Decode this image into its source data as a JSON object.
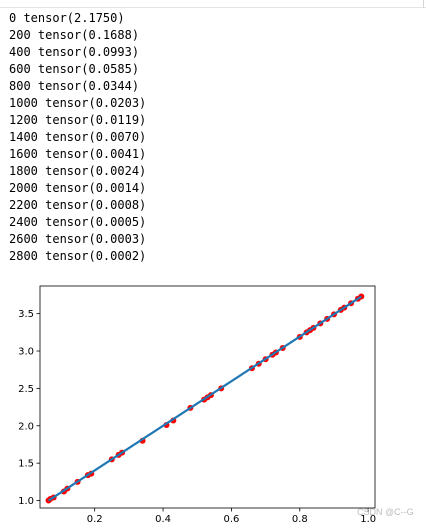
{
  "output": {
    "lines": [
      "0 tensor(2.1750)",
      "200 tensor(0.1688)",
      "400 tensor(0.0993)",
      "600 tensor(0.0585)",
      "800 tensor(0.0344)",
      "1000 tensor(0.0203)",
      "1200 tensor(0.0119)",
      "1400 tensor(0.0070)",
      "1600 tensor(0.0041)",
      "1800 tensor(0.0024)",
      "2000 tensor(0.0014)",
      "2200 tensor(0.0008)",
      "2400 tensor(0.0005)",
      "2600 tensor(0.0003)",
      "2800 tensor(0.0002)"
    ]
  },
  "watermark": "CSDN @C--G",
  "colors": {
    "points": "#ff0000",
    "line": "#1f77b4"
  },
  "chart_data": {
    "type": "scatter",
    "title": "",
    "xlabel": "",
    "ylabel": "",
    "xlim": [
      0.04,
      1.02
    ],
    "ylim": [
      0.9,
      3.87
    ],
    "xticks": [
      0.2,
      0.4,
      0.6,
      0.8,
      1.0
    ],
    "xtick_labels": [
      "0.2",
      "0.4",
      "0.6",
      "0.8",
      "1.0"
    ],
    "yticks": [
      1.0,
      1.5,
      2.0,
      2.5,
      3.0,
      3.5
    ],
    "ytick_labels": [
      "1.0",
      "1.5",
      "2.0",
      "2.5",
      "3.0",
      "3.5"
    ],
    "grid": false,
    "series": [
      {
        "kind": "scatter",
        "color": "#ff0000",
        "x": [
          0.065,
          0.07,
          0.08,
          0.11,
          0.12,
          0.15,
          0.18,
          0.19,
          0.25,
          0.27,
          0.28,
          0.34,
          0.41,
          0.43,
          0.48,
          0.52,
          0.53,
          0.54,
          0.57,
          0.66,
          0.68,
          0.7,
          0.72,
          0.73,
          0.75,
          0.8,
          0.82,
          0.83,
          0.84,
          0.86,
          0.88,
          0.9,
          0.92,
          0.93,
          0.95,
          0.97,
          0.98
        ],
        "y": [
          1.0,
          1.02,
          1.04,
          1.12,
          1.16,
          1.25,
          1.34,
          1.36,
          1.55,
          1.61,
          1.64,
          1.8,
          2.01,
          2.07,
          2.24,
          2.35,
          2.38,
          2.41,
          2.5,
          2.77,
          2.83,
          2.89,
          2.95,
          2.98,
          3.04,
          3.19,
          3.25,
          3.28,
          3.31,
          3.37,
          3.43,
          3.49,
          3.55,
          3.58,
          3.64,
          3.7,
          3.73
        ]
      },
      {
        "kind": "line",
        "color": "#1f77b4",
        "x": [
          0.065,
          0.98
        ],
        "y": [
          1.0,
          3.73
        ]
      }
    ]
  }
}
